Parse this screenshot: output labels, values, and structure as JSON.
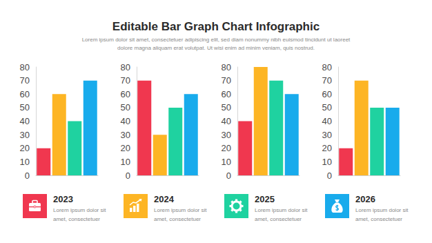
{
  "title": "Editable Bar Graph Chart Infographic",
  "subtitle": [
    "Lorem ipsum dolor sit amet, consectetuer adipiscing elit, sed diam nonummy nibh euismod tincidunt ut laoreet",
    "dolore magna aliquam erat volutpat. Ut wisi enim ad minim veniam, quis nostrud."
  ],
  "chart_data": [
    {
      "type": "bar",
      "title": "2023",
      "subtitle": [
        "Lorem ipsum dolor sit",
        "amet, consectetuer"
      ],
      "categories": [
        null,
        null,
        null,
        null
      ],
      "values": [
        20,
        60,
        40,
        70
      ],
      "colors": [
        "#f0374f",
        "#fdb524",
        "#1fd2a0",
        "#18abec"
      ],
      "ylim": [
        0,
        80
      ],
      "yticks": [
        0,
        10,
        20,
        30,
        40,
        50,
        60,
        70,
        80
      ],
      "grid": false,
      "tick_labels": "y"
    },
    {
      "type": "bar",
      "title": "2024",
      "subtitle": [
        "Lorem ipsum dolor sit",
        "amet, consectetuer"
      ],
      "categories": [
        null,
        null,
        null,
        null
      ],
      "values": [
        70,
        30,
        50,
        60
      ],
      "colors": [
        "#f0374f",
        "#fdb524",
        "#1fd2a0",
        "#18abec"
      ],
      "ylim": [
        0,
        80
      ],
      "yticks": [
        0,
        10,
        20,
        30,
        40,
        50,
        60,
        70,
        80
      ],
      "grid": false,
      "tick_labels": "y"
    },
    {
      "type": "bar",
      "title": "2025",
      "subtitle": [
        "Lorem ipsum dolor sit",
        "amet, consectetuer"
      ],
      "categories": [
        null,
        null,
        null,
        null
      ],
      "values": [
        40,
        80,
        70,
        60
      ],
      "colors": [
        "#f0374f",
        "#fdb524",
        "#1fd2a0",
        "#18abec"
      ],
      "ylim": [
        0,
        80
      ],
      "yticks": [
        0,
        10,
        20,
        30,
        40,
        50,
        60,
        70,
        80
      ],
      "grid": false,
      "tick_labels": "y"
    },
    {
      "type": "bar",
      "title": "2026",
      "subtitle": [
        "Lorem ipsum dolor sit",
        "amet, consectetuer"
      ],
      "categories": [
        null,
        null,
        null,
        null
      ],
      "values": [
        20,
        70,
        50,
        50
      ],
      "colors": [
        "#f0374f",
        "#fdb524",
        "#1fd2a0",
        "#18abec"
      ],
      "ylim": [
        0,
        80
      ],
      "yticks": [
        0,
        10,
        20,
        30,
        40,
        50,
        60,
        70,
        80
      ],
      "grid": false,
      "tick_labels": "y"
    }
  ]
}
